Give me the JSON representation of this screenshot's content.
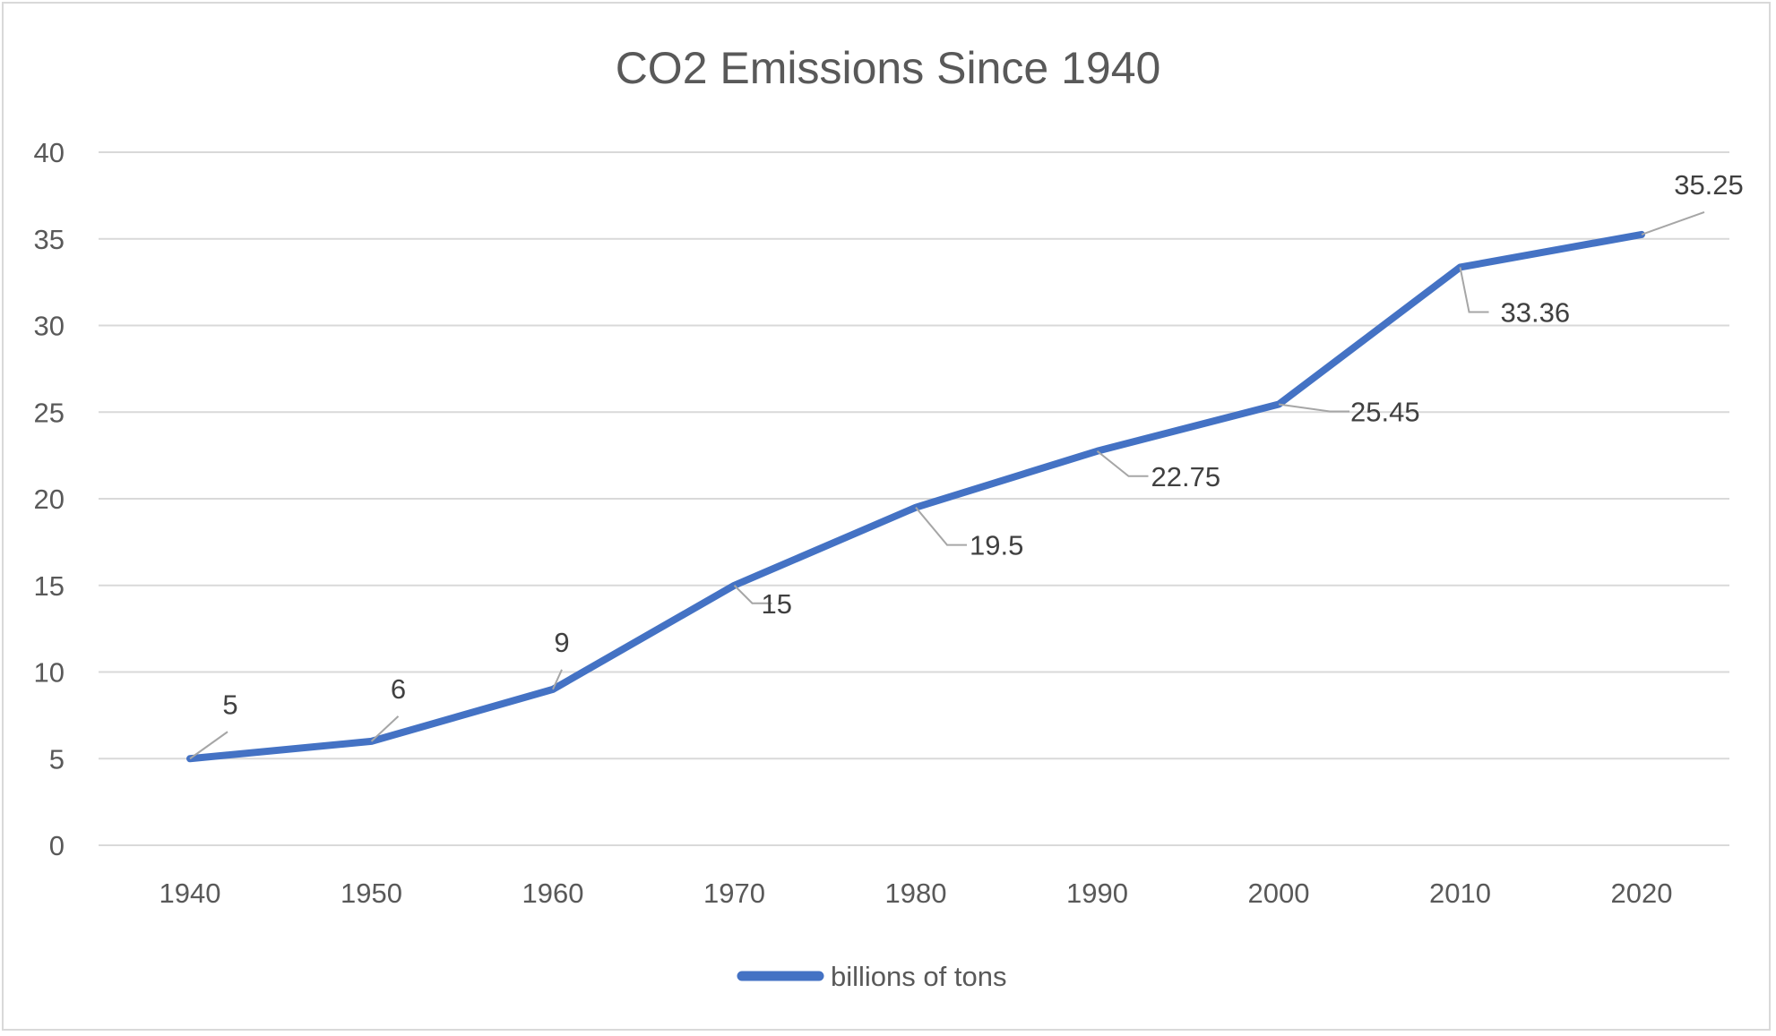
{
  "chart_data": {
    "type": "line",
    "title": "CO2 Emissions Since 1940",
    "xlabel": "",
    "ylabel": "",
    "categories": [
      "1940",
      "1950",
      "1960",
      "1970",
      "1980",
      "1990",
      "2000",
      "2010",
      "2020"
    ],
    "series": [
      {
        "name": "billions of tons",
        "color": "#4472C4",
        "values": [
          5,
          6,
          9,
          15,
          19.5,
          22.75,
          25.45,
          33.36,
          35.25
        ],
        "data_labels": [
          "5",
          "6",
          "9",
          "15",
          "19.5",
          "22.75",
          "25.45",
          "33.36",
          "35.25"
        ]
      }
    ],
    "yticks": [
      "0",
      "5",
      "10",
      "15",
      "20",
      "25",
      "30",
      "35",
      "40"
    ],
    "ylim": [
      0,
      40
    ],
    "ystep": 5,
    "grid": true,
    "legend": "bottom-center",
    "colors": {
      "grid": "#d9d9d9",
      "text": "#595959",
      "leader": "#a6a6a6"
    }
  }
}
